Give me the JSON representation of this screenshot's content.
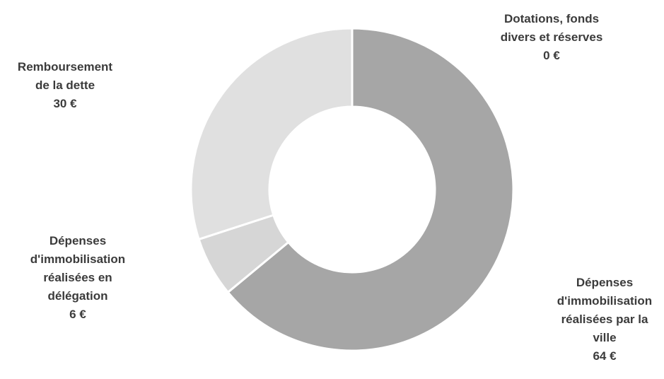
{
  "chart_data": {
    "type": "pie",
    "donut": true,
    "categories": [
      "Dotations, fonds divers et réserves",
      "Dépenses d'immobilisation réalisées par la ville",
      "Dépenses d'immobilisation réalisées en délégation",
      "Remboursement de la dette"
    ],
    "values": [
      0,
      64,
      6,
      30
    ],
    "colors": [
      "#b8b8b8",
      "#a6a6a6",
      "#d6d6d6",
      "#e0e0e0"
    ],
    "labels": [
      {
        "lines": [
          "Dotations, fonds",
          "divers et réserves"
        ],
        "value": "0 €"
      },
      {
        "lines": [
          "Dépenses",
          "d'immobilisation",
          "réalisées par la",
          "ville"
        ],
        "value": "64 €"
      },
      {
        "lines": [
          "Dépenses",
          "d'immobilisation",
          "réalisées en",
          "délégation"
        ],
        "value": "6 €"
      },
      {
        "lines": [
          "Remboursement",
          "de la dette"
        ],
        "value": "30 €"
      }
    ],
    "legend": "none"
  }
}
